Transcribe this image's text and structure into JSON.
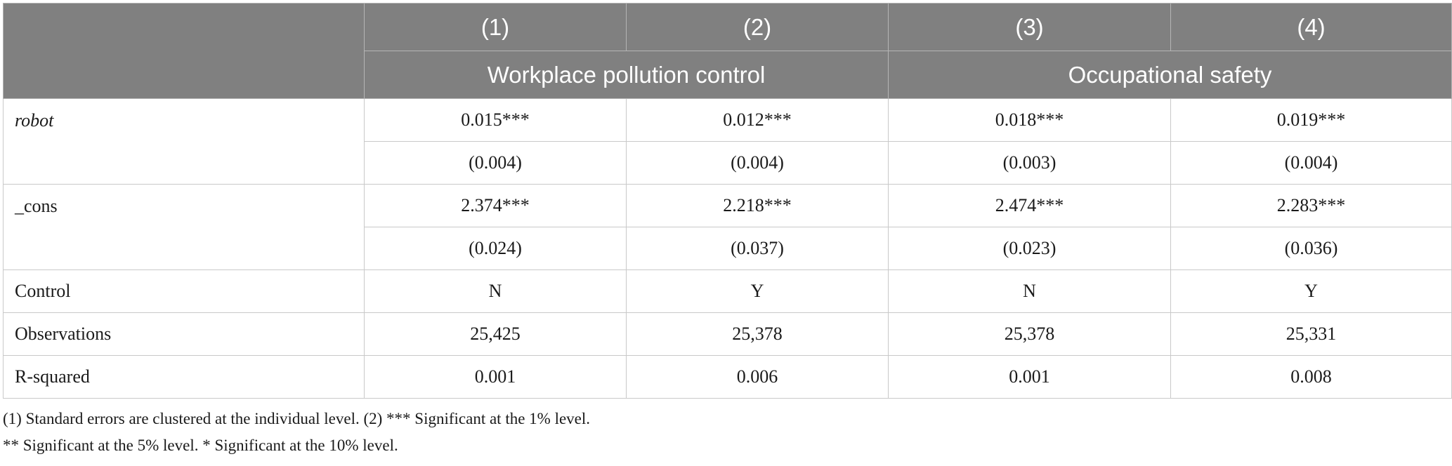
{
  "header": {
    "model_numbers": [
      "(1)",
      "(2)",
      "(3)",
      "(4)"
    ],
    "groups": [
      "Workplace pollution control",
      "Occupational safety"
    ]
  },
  "rows": {
    "robot": {
      "label": "robot",
      "coef": [
        "0.015***",
        "0.012***",
        "0.018***",
        "0.019***"
      ],
      "se": [
        "(0.004)",
        "(0.004)",
        "(0.003)",
        "(0.004)"
      ]
    },
    "cons": {
      "label": "_cons",
      "coef": [
        "2.374***",
        "2.218***",
        "2.474***",
        "2.283***"
      ],
      "se": [
        "(0.024)",
        "(0.037)",
        "(0.023)",
        "(0.036)"
      ]
    },
    "control": {
      "label": "Control",
      "values": [
        "N",
        "Y",
        "N",
        "Y"
      ]
    },
    "observations": {
      "label": "Observations",
      "values": [
        "25,425",
        "25,378",
        "25,378",
        "25,331"
      ]
    },
    "rsquared": {
      "label": "R-squared",
      "values": [
        "0.001",
        "0.006",
        "0.001",
        "0.008"
      ]
    }
  },
  "notes": [
    "(1) Standard errors are clustered at the individual level. (2) *** Significant at the 1% level.",
    "** Significant at the 5% level. * Significant at the 10% level."
  ]
}
